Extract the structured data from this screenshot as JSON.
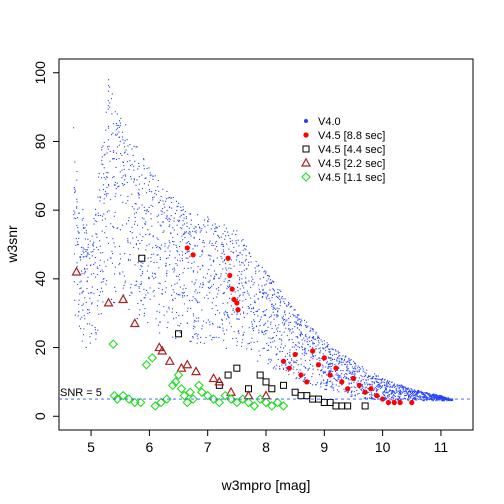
{
  "chart_data": {
    "type": "scatter",
    "xlabel": "w3mpro [mag]",
    "ylabel": "w3snr",
    "xlim": [
      4.45,
      11.55
    ],
    "ylim": [
      -4,
      104
    ],
    "xticks": [
      5,
      6,
      7,
      8,
      9,
      10,
      11
    ],
    "yticks": [
      0,
      20,
      40,
      60,
      80,
      100
    ],
    "grid": false,
    "legend": "top-right",
    "threshold": {
      "y": 5,
      "label": "SNR = 5",
      "style": "dashed",
      "color": "#3355ff"
    },
    "series": [
      {
        "name": "V4.0",
        "marker": "dot",
        "color": "#1f3dff",
        "note_envelope_upper": [
          [
            4.7,
            84
          ],
          [
            4.8,
            65
          ],
          [
            5.0,
            50
          ],
          [
            5.3,
            98
          ],
          [
            5.5,
            88
          ],
          [
            5.9,
            75
          ],
          [
            6.1,
            70
          ],
          [
            6.5,
            62
          ],
          [
            7.0,
            58
          ],
          [
            7.5,
            54
          ],
          [
            8.0,
            42
          ],
          [
            8.5,
            31
          ],
          [
            9.0,
            22
          ],
          [
            9.5,
            16
          ],
          [
            10.0,
            11
          ],
          [
            10.5,
            8
          ],
          [
            11.0,
            6
          ],
          [
            11.2,
            5
          ]
        ],
        "values": [
          [
            4.7,
            84
          ],
          [
            4.72,
            74
          ],
          [
            4.75,
            61
          ],
          [
            4.78,
            50
          ],
          [
            5.3,
            98
          ],
          [
            5.32,
            90
          ],
          [
            5.35,
            82
          ],
          [
            5.38,
            75
          ],
          [
            5.45,
            88
          ],
          [
            5.5,
            80
          ],
          [
            5.55,
            70
          ],
          [
            5.6,
            62
          ],
          [
            5.7,
            55
          ],
          [
            5.8,
            72
          ],
          [
            5.9,
            75
          ],
          [
            6.0,
            66
          ],
          [
            6.1,
            70
          ],
          [
            6.2,
            64
          ],
          [
            6.3,
            58
          ],
          [
            6.4,
            52
          ],
          [
            6.5,
            62
          ],
          [
            6.6,
            56
          ],
          [
            6.7,
            50
          ],
          [
            6.8,
            54
          ],
          [
            6.9,
            47
          ],
          [
            7.0,
            58
          ],
          [
            7.1,
            45
          ],
          [
            7.2,
            52
          ],
          [
            7.3,
            40
          ],
          [
            7.4,
            48
          ],
          [
            7.5,
            54
          ],
          [
            7.6,
            38
          ],
          [
            7.7,
            44
          ],
          [
            7.8,
            35
          ],
          [
            7.9,
            40
          ],
          [
            8.0,
            42
          ],
          [
            8.1,
            32
          ],
          [
            8.2,
            36
          ],
          [
            8.3,
            28
          ],
          [
            8.4,
            30
          ],
          [
            8.5,
            31
          ],
          [
            8.6,
            24
          ],
          [
            8.7,
            26
          ],
          [
            8.8,
            20
          ],
          [
            8.9,
            22
          ],
          [
            9.0,
            22
          ],
          [
            9.1,
            18
          ],
          [
            9.2,
            19
          ],
          [
            9.3,
            15
          ],
          [
            9.4,
            16
          ],
          [
            9.5,
            16
          ],
          [
            9.6,
            13
          ],
          [
            9.7,
            12
          ],
          [
            9.8,
            11
          ],
          [
            9.9,
            10
          ],
          [
            10.0,
            11
          ],
          [
            10.2,
            9
          ],
          [
            10.4,
            8
          ],
          [
            10.6,
            7
          ],
          [
            10.8,
            6
          ],
          [
            11.0,
            6
          ],
          [
            11.1,
            5
          ],
          [
            11.2,
            5
          ]
        ]
      },
      {
        "name": "V4.5 [8.8 sec]",
        "marker": "filled-circle",
        "color": "#ff0000",
        "values": [
          [
            6.65,
            49
          ],
          [
            6.75,
            47
          ],
          [
            7.35,
            46
          ],
          [
            7.38,
            41
          ],
          [
            7.42,
            37
          ],
          [
            7.45,
            34
          ],
          [
            7.5,
            33
          ],
          [
            7.52,
            31
          ],
          [
            8.3,
            16
          ],
          [
            8.4,
            14
          ],
          [
            8.5,
            18
          ],
          [
            8.6,
            12
          ],
          [
            8.7,
            10
          ],
          [
            8.8,
            19
          ],
          [
            8.9,
            15
          ],
          [
            9.0,
            17
          ],
          [
            9.1,
            12
          ],
          [
            9.2,
            14
          ],
          [
            9.3,
            10
          ],
          [
            9.4,
            8
          ],
          [
            9.5,
            11
          ],
          [
            9.6,
            9
          ],
          [
            9.7,
            7
          ],
          [
            9.8,
            8
          ],
          [
            9.9,
            6
          ],
          [
            10.0,
            5
          ],
          [
            10.1,
            4
          ],
          [
            10.2,
            4
          ],
          [
            10.3,
            4
          ],
          [
            10.5,
            4
          ]
        ]
      },
      {
        "name": "V4.5 [4.4 sec]",
        "marker": "open-square",
        "color": "#000000",
        "values": [
          [
            5.87,
            46
          ],
          [
            6.5,
            24
          ],
          [
            7.5,
            14
          ],
          [
            7.35,
            12
          ],
          [
            7.9,
            12
          ],
          [
            8.0,
            10
          ],
          [
            8.1,
            8
          ],
          [
            8.3,
            9
          ],
          [
            7.2,
            9
          ],
          [
            7.7,
            8
          ],
          [
            8.5,
            7
          ],
          [
            8.6,
            6
          ],
          [
            8.7,
            6
          ],
          [
            8.8,
            5
          ],
          [
            8.9,
            5
          ],
          [
            9.0,
            4
          ],
          [
            9.1,
            4
          ],
          [
            9.2,
            3
          ],
          [
            9.3,
            3
          ],
          [
            9.4,
            3
          ],
          [
            9.7,
            3
          ]
        ]
      },
      {
        "name": "V4.5 [2.2 sec]",
        "marker": "open-triangle",
        "color": "#aa2222",
        "values": [
          [
            4.75,
            42
          ],
          [
            5.3,
            33
          ],
          [
            5.55,
            34
          ],
          [
            5.75,
            27
          ],
          [
            6.17,
            20
          ],
          [
            6.22,
            19
          ],
          [
            6.35,
            16
          ],
          [
            6.55,
            14
          ],
          [
            6.65,
            15
          ],
          [
            6.8,
            13
          ],
          [
            7.1,
            11
          ],
          [
            7.2,
            10
          ],
          [
            7.4,
            7
          ],
          [
            7.7,
            6
          ],
          [
            8.0,
            6
          ]
        ]
      },
      {
        "name": "V4.5 [1.1 sec]",
        "marker": "open-diamond",
        "color": "#22dd22",
        "values": [
          [
            5.38,
            21
          ],
          [
            5.4,
            6
          ],
          [
            5.45,
            5
          ],
          [
            5.55,
            6
          ],
          [
            5.65,
            5
          ],
          [
            5.75,
            4
          ],
          [
            5.85,
            4
          ],
          [
            5.95,
            15
          ],
          [
            6.05,
            17
          ],
          [
            6.1,
            3
          ],
          [
            6.2,
            4
          ],
          [
            6.3,
            5
          ],
          [
            6.4,
            9
          ],
          [
            6.45,
            10
          ],
          [
            6.5,
            12
          ],
          [
            6.55,
            8
          ],
          [
            6.6,
            6
          ],
          [
            6.65,
            4
          ],
          [
            6.7,
            7
          ],
          [
            6.75,
            5
          ],
          [
            6.85,
            9
          ],
          [
            6.9,
            7
          ],
          [
            7.0,
            6
          ],
          [
            7.1,
            5
          ],
          [
            7.2,
            4
          ],
          [
            7.3,
            6
          ],
          [
            7.4,
            5
          ],
          [
            7.5,
            4
          ],
          [
            7.6,
            5
          ],
          [
            7.7,
            4
          ],
          [
            7.8,
            3
          ],
          [
            7.9,
            5
          ],
          [
            8.0,
            4
          ],
          [
            8.1,
            3
          ],
          [
            8.2,
            4
          ],
          [
            8.3,
            3
          ]
        ]
      }
    ]
  }
}
